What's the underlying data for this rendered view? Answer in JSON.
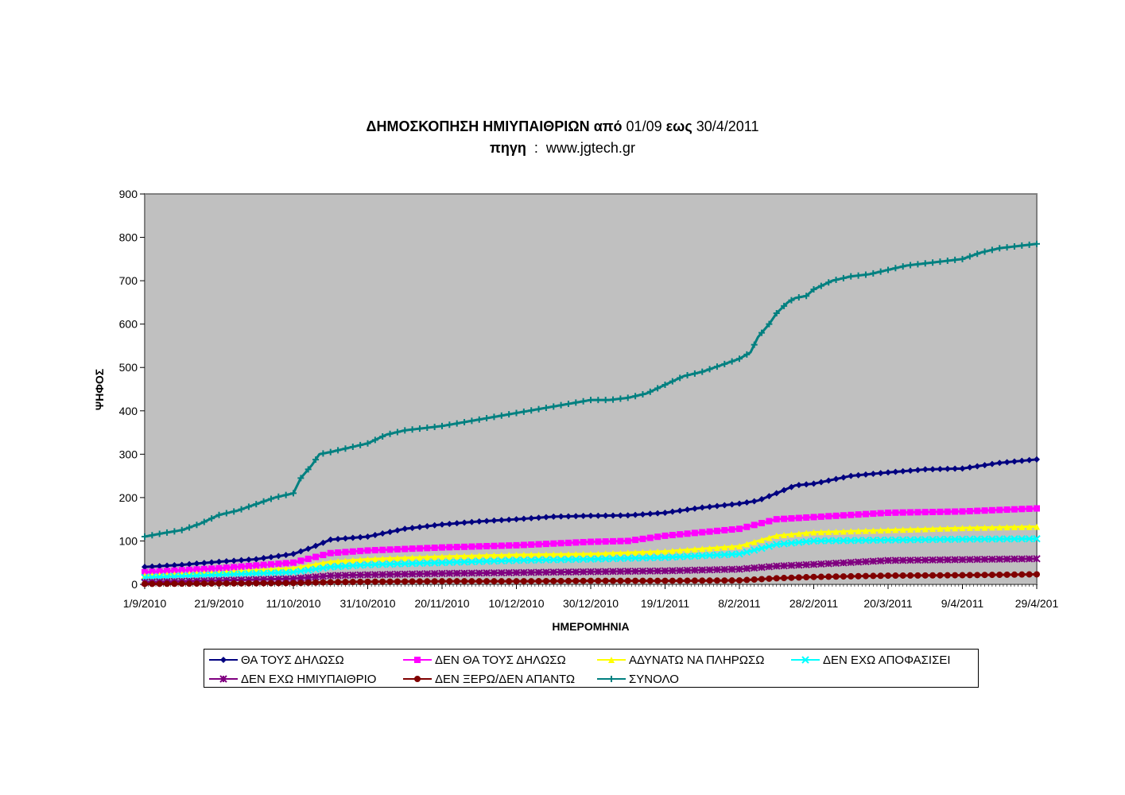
{
  "title": {
    "part1": "ΔΗΜΟΣΚΟΠΗΣΗ ΗΜΙΥΠΑΙΘΡΙΩΝ",
    "part2": "από",
    "part3": "01/09",
    "part4": "εως",
    "part5": "30/4/2011",
    "source_label": "πηγη",
    "source_sep": ":",
    "source_value": "www.jgtech.gr"
  },
  "colors": {
    "plot_background": "#c0c0c0",
    "axis": "#808080"
  },
  "chart_data": {
    "type": "line",
    "title": "ΔΗΜΟΣΚΟΠΗΣΗ ΗΜΙΥΠΑΙΘΡΙΩΝ από 01/09 εως 30/4/2011 πηγη : www.jgtech.gr",
    "xlabel": "ΗΜΕΡΟΜΗΝΙΑ",
    "ylabel": "ΨΗΦΟΣ",
    "ylim": [
      0,
      900
    ],
    "yticks": [
      0,
      100,
      200,
      300,
      400,
      500,
      600,
      700,
      800,
      900
    ],
    "xlim": [
      "1/9/2010",
      "29/4/2011"
    ],
    "xtick_labels": [
      "1/9/2010",
      "21/9/2010",
      "11/10/2010",
      "31/10/2010",
      "20/11/2010",
      "10/12/2010",
      "30/12/2010",
      "19/1/2011",
      "8/2/2011",
      "28/2/2011",
      "20/3/2011",
      "9/4/2011",
      "29/4/201"
    ],
    "grid": false,
    "legend_position": "bottom",
    "series": [
      {
        "name": "ΘΑ ΤΟΥΣ ΔΗΛΩΣΩ",
        "color": "#000080",
        "marker": "diamond",
        "x": [
          "1/9/2010",
          "11/9/2010",
          "21/9/2010",
          "1/10/2010",
          "11/10/2010",
          "16/10/2010",
          "21/10/2010",
          "31/10/2010",
          "10/11/2010",
          "20/11/2010",
          "30/11/2010",
          "10/12/2010",
          "20/12/2010",
          "30/12/2010",
          "9/1/2011",
          "19/1/2011",
          "29/1/2011",
          "8/2/2011",
          "13/2/2011",
          "18/2/2011",
          "23/2/2011",
          "28/2/2011",
          "10/3/2011",
          "20/3/2011",
          "30/3/2011",
          "9/4/2011",
          "19/4/2011",
          "29/4/2011"
        ],
        "values": [
          40,
          45,
          52,
          58,
          70,
          85,
          103,
          110,
          128,
          138,
          145,
          150,
          156,
          158,
          159,
          165,
          177,
          186,
          193,
          210,
          228,
          232,
          250,
          258,
          265,
          267,
          280,
          288
        ]
      },
      {
        "name": "ΔΕΝ ΘΑ ΤΟΥΣ ΔΗΛΩΣΩ",
        "color": "#ff00ff",
        "marker": "square",
        "x": [
          "1/9/2010",
          "21/9/2010",
          "11/10/2010",
          "21/10/2010",
          "31/10/2010",
          "20/11/2010",
          "10/12/2010",
          "30/12/2010",
          "9/1/2011",
          "19/1/2011",
          "8/2/2011",
          "18/2/2011",
          "28/2/2011",
          "20/3/2011",
          "9/4/2011",
          "29/4/2011"
        ],
        "values": [
          28,
          37,
          50,
          72,
          78,
          85,
          90,
          98,
          100,
          112,
          128,
          150,
          155,
          165,
          168,
          175
        ]
      },
      {
        "name": "ΑΔΥΝΑΤΩ ΝΑ ΠΛΗΡΩΣΩ",
        "color": "#ffff00",
        "marker": "triangle",
        "x": [
          "1/9/2010",
          "21/9/2010",
          "11/10/2010",
          "21/10/2010",
          "31/10/2010",
          "20/11/2010",
          "10/12/2010",
          "30/12/2010",
          "19/1/2011",
          "8/2/2011",
          "18/2/2011",
          "28/2/2011",
          "20/3/2011",
          "9/4/2011",
          "29/4/2011"
        ],
        "values": [
          20,
          27,
          37,
          52,
          58,
          64,
          68,
          70,
          76,
          88,
          112,
          120,
          125,
          130,
          133
        ]
      },
      {
        "name": "ΔΕΝ ΕΧΩ ΑΠΟΦΑΣΙΣΕΙ",
        "color": "#00ffff",
        "marker": "x",
        "x": [
          "1/9/2010",
          "21/9/2010",
          "11/10/2010",
          "21/10/2010",
          "31/10/2010",
          "20/11/2010",
          "10/12/2010",
          "30/12/2010",
          "19/1/2011",
          "8/2/2011",
          "18/2/2011",
          "28/2/2011",
          "20/3/2011",
          "9/4/2011",
          "29/4/2011"
        ],
        "values": [
          16,
          22,
          28,
          40,
          45,
          50,
          55,
          58,
          62,
          70,
          92,
          100,
          102,
          104,
          105
        ]
      },
      {
        "name": "ΔΕΝ ΕΧΩ ΗΜΙΥΠΑΙΘΡΙΟ",
        "color": "#800080",
        "marker": "star",
        "x": [
          "1/9/2010",
          "21/9/2010",
          "11/10/2010",
          "21/10/2010",
          "31/10/2010",
          "20/11/2010",
          "10/12/2010",
          "30/12/2010",
          "19/1/2011",
          "8/2/2011",
          "18/2/2011",
          "28/2/2011",
          "20/3/2011",
          "9/4/2011",
          "29/4/2011"
        ],
        "values": [
          5,
          9,
          13,
          20,
          22,
          25,
          27,
          29,
          31,
          35,
          42,
          46,
          55,
          57,
          59
        ]
      },
      {
        "name": "ΔΕΝ ΞΕΡΩ/ΔΕΝ ΑΠΑΝΤΩ",
        "color": "#800000",
        "marker": "circle",
        "x": [
          "1/9/2010",
          "21/9/2010",
          "11/10/2010",
          "21/10/2010",
          "31/10/2010",
          "20/11/2010",
          "10/12/2010",
          "30/12/2010",
          "19/1/2011",
          "8/2/2011",
          "18/2/2011",
          "28/2/2011",
          "20/3/2011",
          "9/4/2011",
          "29/4/2011"
        ],
        "values": [
          1,
          2,
          3,
          5,
          6,
          7,
          7,
          8,
          8,
          9,
          14,
          17,
          20,
          21,
          23
        ]
      },
      {
        "name": "ΣΥΝΟΛΟ",
        "color": "#008080",
        "marker": "plus",
        "x": [
          "1/9/2010",
          "6/9/2010",
          "11/9/2010",
          "16/9/2010",
          "21/9/2010",
          "26/9/2010",
          "1/10/2010",
          "6/10/2010",
          "11/10/2010",
          "13/10/2010",
          "16/10/2010",
          "18/10/2010",
          "21/10/2010",
          "26/10/2010",
          "31/10/2010",
          "5/11/2010",
          "10/11/2010",
          "20/11/2010",
          "30/11/2010",
          "10/12/2010",
          "20/12/2010",
          "30/12/2010",
          "4/1/2011",
          "9/1/2011",
          "14/1/2011",
          "19/1/2011",
          "24/1/2011",
          "29/1/2011",
          "3/2/2011",
          "8/2/2011",
          "11/2/2011",
          "13/2/2011",
          "16/2/2011",
          "18/2/2011",
          "21/2/2011",
          "23/2/2011",
          "26/2/2011",
          "28/2/2011",
          "5/3/2011",
          "10/3/2011",
          "15/3/2011",
          "20/3/2011",
          "25/3/2011",
          "30/3/2011",
          "4/4/2011",
          "9/4/2011",
          "14/4/2011",
          "19/4/2011",
          "24/4/2011",
          "29/4/2011"
        ],
        "values": [
          110,
          118,
          125,
          140,
          160,
          170,
          185,
          200,
          210,
          245,
          275,
          300,
          305,
          315,
          325,
          345,
          355,
          365,
          380,
          395,
          410,
          425,
          425,
          430,
          440,
          460,
          480,
          490,
          505,
          520,
          535,
          570,
          600,
          625,
          650,
          660,
          665,
          680,
          700,
          710,
          715,
          725,
          735,
          740,
          745,
          750,
          765,
          775,
          780,
          785
        ]
      }
    ]
  }
}
